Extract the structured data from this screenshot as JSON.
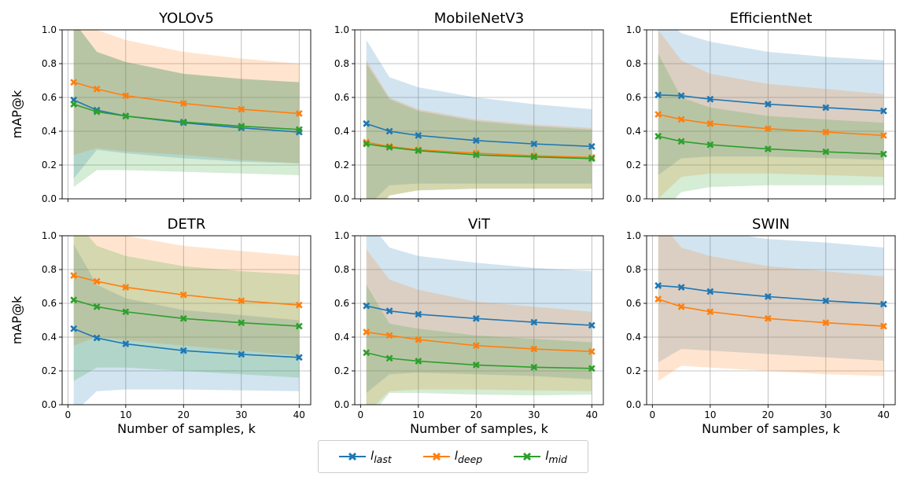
{
  "chart_data": {
    "type": "line",
    "layout": "2x3 grid",
    "grid": true,
    "shared_xlabel": "Number of samples, k",
    "shared_ylabel": "mAP@k",
    "x": [
      1,
      5,
      10,
      20,
      30,
      40
    ],
    "xlim": [
      -1,
      42
    ],
    "ylim": [
      0,
      1
    ],
    "xticks": [
      0,
      10,
      20,
      30,
      40
    ],
    "yticks": [
      0.0,
      0.2,
      0.4,
      0.6,
      0.8,
      1.0
    ],
    "legend": {
      "placement": "bottom-center",
      "entries": [
        {
          "name": "l_last",
          "base": "l",
          "sub": "last",
          "color": "#1f77b4"
        },
        {
          "name": "l_deep",
          "base": "l",
          "sub": "deep",
          "color": "#ff7f0e"
        },
        {
          "name": "l_mid",
          "base": "l",
          "sub": "mid",
          "color": "#2ca02c"
        }
      ]
    },
    "panels": [
      {
        "title": "YOLOv5",
        "series": [
          {
            "name": "l_last",
            "values": [
              0.585,
              0.525,
              0.49,
              0.45,
              0.42,
              0.395
            ],
            "band_upper": [
              1.05,
              0.87,
              0.81,
              0.74,
              0.71,
              0.69
            ],
            "band_lower": [
              0.12,
              0.29,
              0.27,
              0.24,
              0.22,
              0.21
            ]
          },
          {
            "name": "l_deep",
            "values": [
              0.69,
              0.65,
              0.61,
              0.565,
              0.53,
              0.505
            ],
            "band_upper": [
              1.1,
              1.0,
              0.94,
              0.87,
              0.83,
              0.8
            ],
            "band_lower": [
              0.26,
              0.3,
              0.28,
              0.26,
              0.23,
              0.21
            ]
          },
          {
            "name": "l_mid",
            "values": [
              0.56,
              0.515,
              0.49,
              0.455,
              0.43,
              0.41
            ],
            "band_upper": [
              1.05,
              0.87,
              0.81,
              0.74,
              0.71,
              0.69
            ],
            "band_lower": [
              0.07,
              0.17,
              0.17,
              0.16,
              0.15,
              0.14
            ]
          }
        ]
      },
      {
        "title": "MobileNetV3",
        "series": [
          {
            "name": "l_last",
            "values": [
              0.445,
              0.4,
              0.375,
              0.345,
              0.325,
              0.31
            ],
            "band_upper": [
              0.94,
              0.72,
              0.66,
              0.6,
              0.56,
              0.53
            ],
            "band_lower": [
              -0.05,
              0.08,
              0.09,
              0.09,
              0.09,
              0.09
            ]
          },
          {
            "name": "l_deep",
            "values": [
              0.335,
              0.31,
              0.29,
              0.27,
              0.255,
              0.245
            ],
            "band_upper": [
              0.82,
              0.6,
              0.53,
              0.47,
              0.44,
              0.42
            ],
            "band_lower": [
              -0.15,
              0.02,
              0.05,
              0.06,
              0.06,
              0.06
            ]
          },
          {
            "name": "l_mid",
            "values": [
              0.325,
              0.305,
              0.285,
              0.26,
              0.248,
              0.238
            ],
            "band_upper": [
              0.8,
              0.59,
              0.52,
              0.46,
              0.43,
              0.41
            ],
            "band_lower": [
              -0.15,
              0.02,
              0.05,
              0.06,
              0.06,
              0.06
            ]
          }
        ]
      },
      {
        "title": "EfficientNet",
        "series": [
          {
            "name": "l_last",
            "values": [
              0.615,
              0.61,
              0.59,
              0.56,
              0.54,
              0.52
            ],
            "band_upper": [
              1.1,
              0.98,
              0.93,
              0.87,
              0.84,
              0.82
            ],
            "band_lower": [
              0.14,
              0.24,
              0.25,
              0.25,
              0.24,
              0.23
            ]
          },
          {
            "name": "l_deep",
            "values": [
              0.5,
              0.47,
              0.445,
              0.415,
              0.395,
              0.375
            ],
            "band_upper": [
              1.0,
              0.82,
              0.74,
              0.68,
              0.65,
              0.62
            ],
            "band_lower": [
              0.0,
              0.13,
              0.15,
              0.15,
              0.14,
              0.13
            ]
          },
          {
            "name": "l_mid",
            "values": [
              0.37,
              0.34,
              0.32,
              0.295,
              0.278,
              0.265
            ],
            "band_upper": [
              0.86,
              0.6,
              0.54,
              0.49,
              0.47,
              0.45
            ],
            "band_lower": [
              -0.1,
              0.04,
              0.07,
              0.08,
              0.08,
              0.08
            ]
          }
        ]
      },
      {
        "title": "DETR",
        "series": [
          {
            "name": "l_last",
            "values": [
              0.45,
              0.395,
              0.36,
              0.32,
              0.298,
              0.28
            ],
            "band_upper": [
              0.95,
              0.71,
              0.63,
              0.56,
              0.53,
              0.5
            ],
            "band_lower": [
              -0.05,
              0.08,
              0.09,
              0.09,
              0.085,
              0.08
            ]
          },
          {
            "name": "l_deep",
            "values": [
              0.765,
              0.73,
              0.695,
              0.65,
              0.615,
              0.59
            ],
            "band_upper": [
              1.15,
              1.05,
              1.0,
              0.94,
              0.91,
              0.88
            ],
            "band_lower": [
              0.35,
              0.4,
              0.38,
              0.35,
              0.32,
              0.29
            ]
          },
          {
            "name": "l_mid",
            "values": [
              0.62,
              0.58,
              0.55,
              0.51,
              0.485,
              0.465
            ],
            "band_upper": [
              1.1,
              0.94,
              0.88,
              0.82,
              0.79,
              0.77
            ],
            "band_lower": [
              0.14,
              0.22,
              0.22,
              0.2,
              0.18,
              0.16
            ]
          }
        ]
      },
      {
        "title": "ViT",
        "series": [
          {
            "name": "l_last",
            "values": [
              0.585,
              0.555,
              0.535,
              0.51,
              0.488,
              0.47
            ],
            "band_upper": [
              1.1,
              0.93,
              0.88,
              0.84,
              0.81,
              0.79
            ],
            "band_lower": [
              0.07,
              0.18,
              0.19,
              0.18,
              0.17,
              0.15
            ]
          },
          {
            "name": "l_deep",
            "values": [
              0.43,
              0.41,
              0.385,
              0.35,
              0.33,
              0.315
            ],
            "band_upper": [
              0.92,
              0.74,
              0.68,
              0.61,
              0.58,
              0.55
            ],
            "band_lower": [
              -0.05,
              0.08,
              0.09,
              0.09,
              0.085,
              0.08
            ]
          },
          {
            "name": "l_mid",
            "values": [
              0.308,
              0.275,
              0.258,
              0.235,
              0.222,
              0.215
            ],
            "band_upper": [
              0.71,
              0.48,
              0.45,
              0.41,
              0.39,
              0.37
            ],
            "band_lower": [
              -0.1,
              0.07,
              0.07,
              0.06,
              0.055,
              0.06
            ]
          }
        ]
      },
      {
        "title": "SWIN",
        "series": [
          {
            "name": "l_last",
            "values": [
              0.705,
              0.695,
              0.67,
              0.64,
              0.615,
              0.595
            ],
            "band_upper": [
              1.2,
              1.07,
              1.03,
              0.98,
              0.96,
              0.93
            ],
            "band_lower": [
              0.25,
              0.33,
              0.32,
              0.3,
              0.28,
              0.26
            ]
          },
          {
            "name": "l_deep",
            "values": [
              0.625,
              0.58,
              0.55,
              0.51,
              0.485,
              0.465
            ],
            "band_upper": [
              1.1,
              0.93,
              0.88,
              0.82,
              0.79,
              0.76
            ],
            "band_lower": [
              0.14,
              0.23,
              0.22,
              0.2,
              0.18,
              0.17
            ]
          }
        ]
      }
    ]
  }
}
